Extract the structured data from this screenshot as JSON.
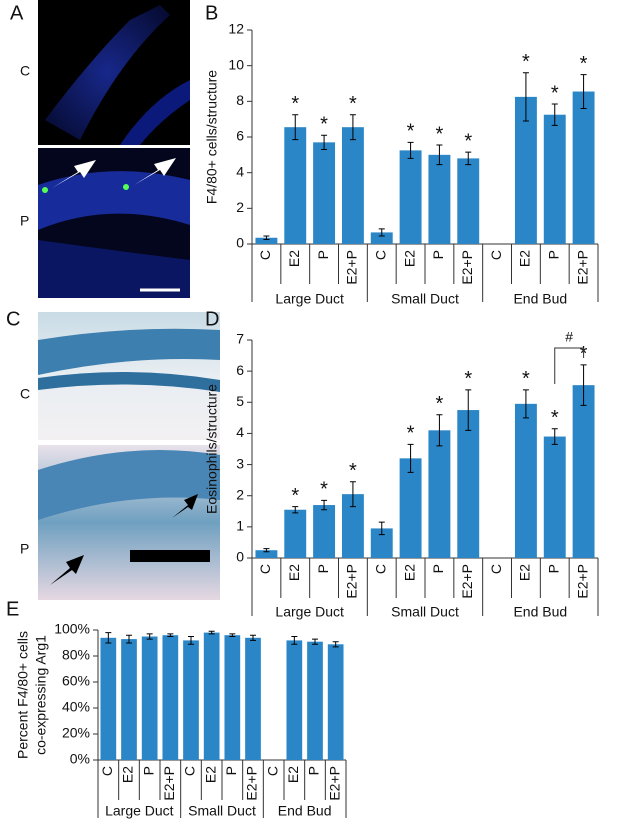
{
  "panel_labels": [
    "A",
    "B",
    "C",
    "D",
    "E"
  ],
  "image_labels": {
    "A": [
      "C",
      "P"
    ],
    "C": [
      "C",
      "P"
    ]
  },
  "chart_data": [
    {
      "type": "bar",
      "ylabel": "F4/80+ cells/structure",
      "color": "#2a86c6",
      "categories": [
        "C",
        "E2",
        "P",
        "E2+P",
        "C",
        "E2",
        "P",
        "E2+P",
        "C",
        "E2",
        "P",
        "E2+P"
      ],
      "group_labels": [
        "Large Duct",
        "Small Duct",
        "End Bud"
      ],
      "values": [
        0.35,
        6.55,
        5.7,
        6.55,
        0.65,
        5.25,
        5.0,
        4.8,
        null,
        8.25,
        7.25,
        8.55
      ],
      "errors": [
        0.1,
        0.7,
        0.4,
        0.7,
        0.2,
        0.45,
        0.55,
        0.35,
        null,
        1.35,
        0.6,
        0.95
      ],
      "markers": [
        null,
        "*",
        "*",
        "*",
        null,
        "*",
        "*",
        "*",
        null,
        "*",
        "*",
        "*"
      ],
      "ylim": [
        0,
        12
      ],
      "yticks": [
        0,
        2,
        4,
        6,
        8,
        10,
        12
      ]
    },
    {
      "type": "bar",
      "ylabel": "Eosinophils/structure",
      "color": "#2a86c6",
      "categories": [
        "C",
        "E2",
        "P",
        "E2+P",
        "C",
        "E2",
        "P",
        "E2+P",
        "C",
        "E2",
        "P",
        "E2+P"
      ],
      "group_labels": [
        "Large Duct",
        "Small Duct",
        "End Bud"
      ],
      "values": [
        0.25,
        1.55,
        1.7,
        2.05,
        0.95,
        3.2,
        4.1,
        4.75,
        null,
        4.95,
        3.9,
        5.55
      ],
      "errors": [
        0.05,
        0.1,
        0.15,
        0.4,
        0.2,
        0.45,
        0.5,
        0.65,
        null,
        0.45,
        0.25,
        0.65
      ],
      "markers": [
        null,
        "*",
        "*",
        "*",
        null,
        "*",
        "*",
        "*",
        null,
        "*",
        "*",
        "*"
      ],
      "bracket": "#",
      "ylim": [
        0,
        7
      ],
      "yticks": [
        0,
        1,
        2,
        3,
        4,
        5,
        6,
        7
      ]
    },
    {
      "type": "bar",
      "ylabel": [
        "Percent F4/80+ cells",
        "co-expressing Arg1"
      ],
      "color": "#2a86c6",
      "categories": [
        "C",
        "E2",
        "P",
        "E2+P",
        "C",
        "E2",
        "P",
        "E2+P",
        "C",
        "E2",
        "P",
        "E2+P"
      ],
      "group_labels": [
        "Large Duct",
        "Small Duct",
        "End Bud"
      ],
      "values": [
        94,
        93,
        95,
        96,
        92,
        98,
        96,
        94,
        null,
        92,
        91,
        89
      ],
      "errors": [
        4,
        3,
        2,
        1,
        3,
        1,
        1,
        2,
        null,
        3,
        2,
        2
      ],
      "ylim": [
        0,
        100
      ],
      "yticks": [
        {
          "value": 0,
          "label": "0%"
        },
        {
          "value": 20,
          "label": "20%"
        },
        {
          "value": 40,
          "label": "40%"
        },
        {
          "value": 60,
          "label": "60%"
        },
        {
          "value": 80,
          "label": "80%"
        },
        {
          "value": 100,
          "label": "100%"
        }
      ]
    }
  ]
}
